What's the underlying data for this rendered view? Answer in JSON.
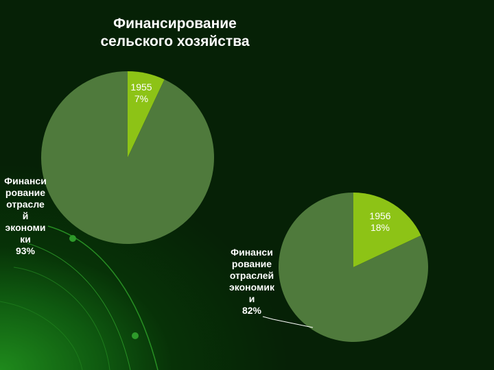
{
  "title": {
    "line1": "Финансирование",
    "line2": "сельского хозяйства"
  },
  "colors": {
    "background": "#062106",
    "pie_main": "#4f7a3c",
    "pie_slice": "#8dc316",
    "text": "#ffffff"
  },
  "chart_data": [
    {
      "type": "pie",
      "slices": [
        {
          "label_lines": [
            "1955",
            "7%"
          ],
          "value": 7,
          "color": "#8dc316"
        },
        {
          "label_lines": [
            "Финанси",
            "рование",
            "отрасле",
            "й",
            "экономи",
            "ки",
            "93%"
          ],
          "value": 93,
          "color": "#4f7a3c"
        }
      ]
    },
    {
      "type": "pie",
      "slices": [
        {
          "label_lines": [
            "1956",
            "18%"
          ],
          "value": 18,
          "color": "#8dc316"
        },
        {
          "label_lines": [
            "Финанси",
            "рование",
            "отраслей",
            "экономик",
            "и",
            "82%"
          ],
          "value": 82,
          "color": "#4f7a3c"
        }
      ]
    }
  ]
}
